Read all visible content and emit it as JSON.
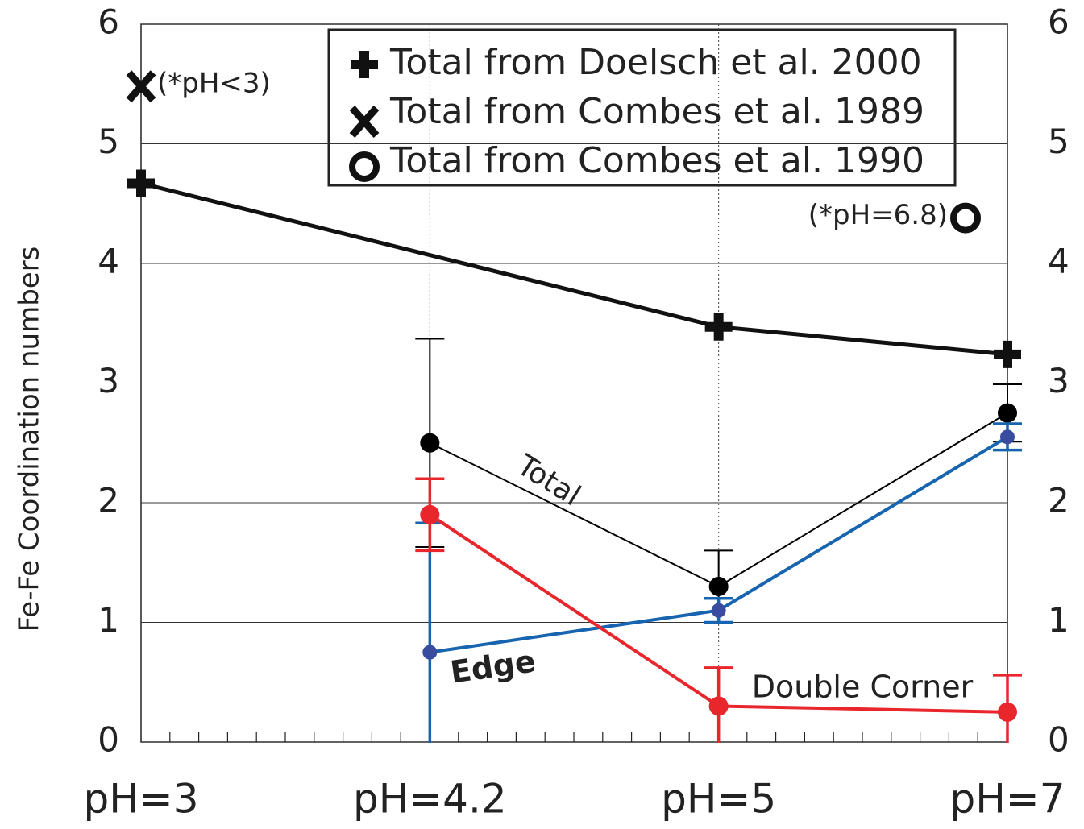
{
  "chart_data": {
    "type": "line",
    "y_label": "Fe-Fe Coordination numbers",
    "categories": [
      "pH=3",
      "pH=4.2",
      "pH=5",
      "pH=7"
    ],
    "ylim": [
      0,
      6
    ],
    "yticks": [
      0,
      1,
      2,
      3,
      4,
      5,
      6
    ],
    "grid": true,
    "legend": "upper right",
    "series": [
      {
        "name": "Total from Doelsch et al. 2000",
        "color": "#111111",
        "marker": "plus",
        "x": [
          "pH=3",
          "pH=5",
          "pH=7"
        ],
        "values": [
          4.67,
          3.47,
          3.24
        ]
      },
      {
        "name": "Total from Combes et al. 1989",
        "color": "#111111",
        "marker": "x",
        "values": [
          5.48,
          null,
          null,
          null
        ],
        "note": "(*pH<3)"
      },
      {
        "name": "Total from Combes et al. 1990",
        "color": "#111111",
        "marker": "ring",
        "values": [
          null,
          null,
          null,
          4.38
        ],
        "note": "(*pH=6.8)"
      },
      {
        "name": "Total",
        "color": "#000000",
        "values": [
          null,
          2.5,
          1.3,
          2.75
        ],
        "errors": [
          null,
          0.87,
          0.3,
          0.24
        ]
      },
      {
        "name": "Edge",
        "color": "#1764b0",
        "marker_color": "#3a4ca0",
        "values": [
          null,
          0.75,
          1.1,
          2.55
        ],
        "errors": [
          null,
          1.08,
          0.1,
          0.11
        ]
      },
      {
        "name": "Double Corner",
        "color": "#e8262b",
        "values": [
          null,
          1.9,
          0.3,
          0.25
        ],
        "errors": [
          null,
          0.3,
          0.32,
          0.31
        ]
      }
    ]
  }
}
